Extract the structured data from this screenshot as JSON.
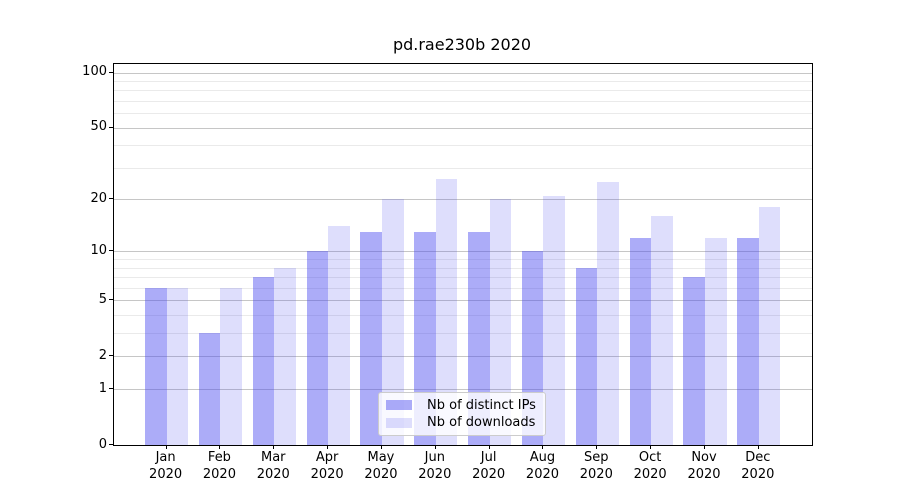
{
  "title": "pd.rae230b 2020",
  "chart_data": {
    "type": "bar",
    "title": "pd.rae230b 2020",
    "categories": [
      "Jan",
      "Feb",
      "Mar",
      "Apr",
      "May",
      "Jun",
      "Jul",
      "Aug",
      "Sep",
      "Oct",
      "Nov",
      "Dec"
    ],
    "year_label": "2020",
    "series": [
      {
        "name": "Nb of distinct IPs",
        "color": "rgba(70,70,240,0.45)",
        "values": [
          6,
          3,
          7,
          10,
          13,
          13,
          13,
          10,
          8,
          12,
          7,
          12
        ]
      },
      {
        "name": "Nb of downloads",
        "color": "rgba(70,70,240,0.18)",
        "values": [
          6,
          6,
          8,
          14,
          20,
          26,
          20,
          21,
          25,
          16,
          12,
          18
        ]
      }
    ],
    "yscale": "log1p",
    "ylim": [
      0,
      111.3
    ],
    "major_ticks": [
      0,
      1,
      2,
      5,
      10,
      20,
      50,
      100
    ],
    "ytick_labels": [
      "0",
      "1",
      "2",
      "5",
      "10",
      "20",
      "50",
      "100"
    ],
    "minor_ticks": [
      3,
      4,
      6,
      7,
      8,
      9,
      30,
      40,
      60,
      70,
      80,
      90
    ],
    "grid": true,
    "legend_position": "lower center"
  },
  "colors": {
    "grid_major": "#c6c6c6",
    "grid_minor": "#eaeaea",
    "axis": "#000000",
    "legend_border": "#cccccc",
    "legend_bg": "rgba(255,255,255,0.8)"
  }
}
